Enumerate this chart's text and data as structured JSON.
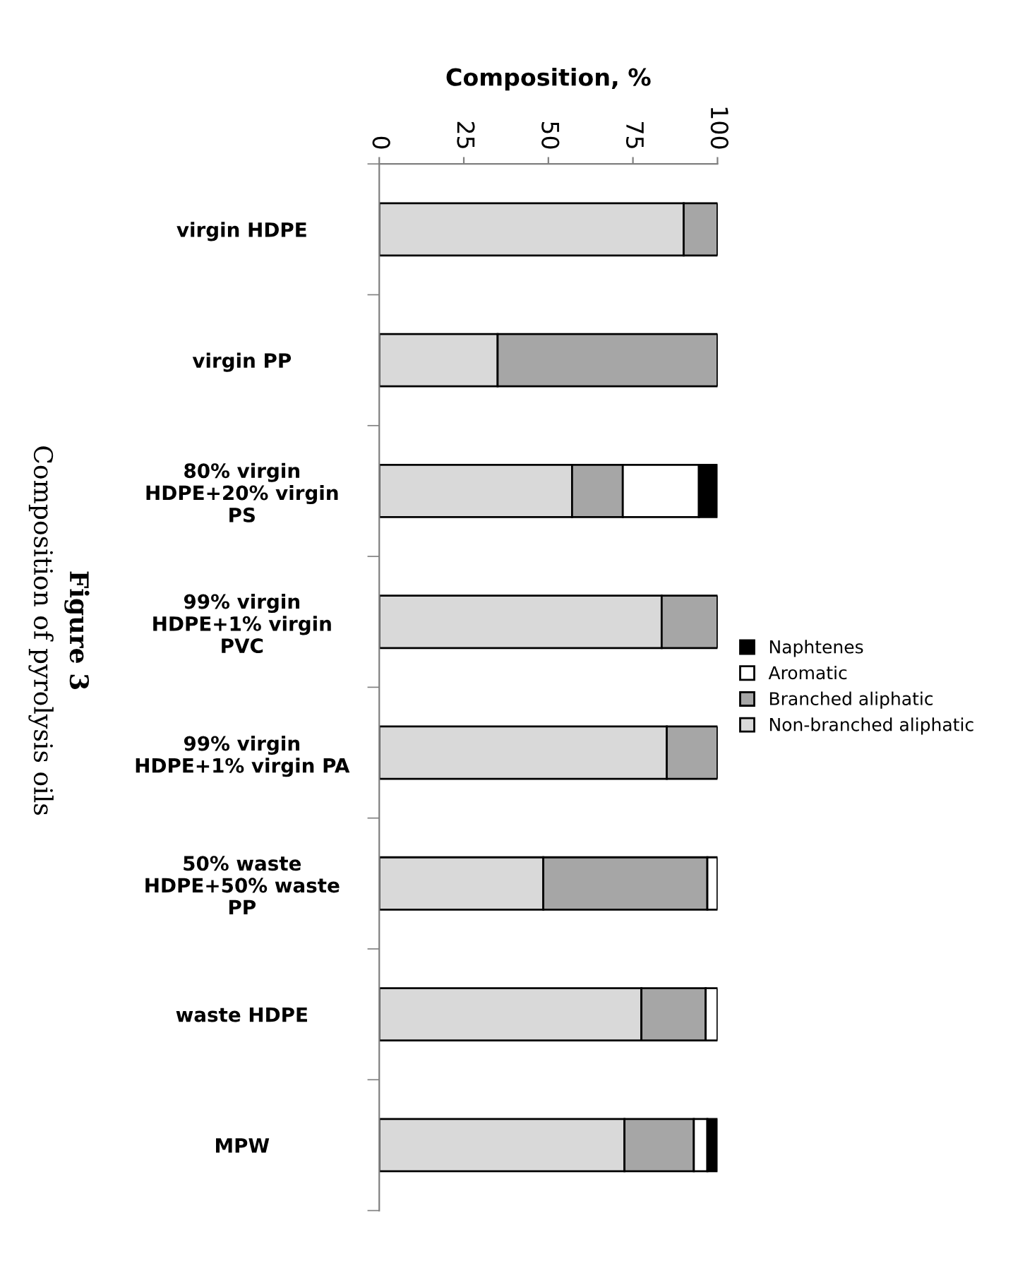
{
  "chart_data": {
    "type": "bar",
    "orientation": "horizontal",
    "stacked": true,
    "xlabel": "Composition, %",
    "categories": [
      "virgin HDPE",
      "virgin PP",
      "80% virgin\nHDPE+20% virgin\nPS",
      "99% virgin\nHDPE+1% virgin\nPVC",
      "99% virgin\nHDPE+1% virgin PA",
      "50% waste\nHDPE+50% waste\nPP",
      "waste HDPE",
      "MPW"
    ],
    "series": [
      {
        "name": "Non-branched aliphatic",
        "color": "#d9d9d9",
        "values": [
          90,
          35,
          57,
          83.5,
          85,
          48.5,
          77.5,
          72.5
        ]
      },
      {
        "name": "Branched aliphatic",
        "color": "#a6a6a6",
        "values": [
          10,
          65,
          15,
          16.5,
          15,
          48.5,
          19,
          20.5
        ]
      },
      {
        "name": "Aromatic",
        "color": "#ffffff",
        "values": [
          0,
          0,
          22.5,
          0,
          0,
          3,
          3.5,
          4
        ]
      },
      {
        "name": "Naphtenes",
        "color": "#000000",
        "values": [
          0,
          0,
          5.5,
          0,
          0,
          0,
          0,
          3
        ]
      }
    ],
    "xlim": [
      0,
      100
    ],
    "xticks": [
      0,
      25,
      50,
      75,
      100
    ],
    "grid": false,
    "legend": "right",
    "annotations": [
      "Figure 3",
      "Composition of pyrolysis oils"
    ]
  }
}
